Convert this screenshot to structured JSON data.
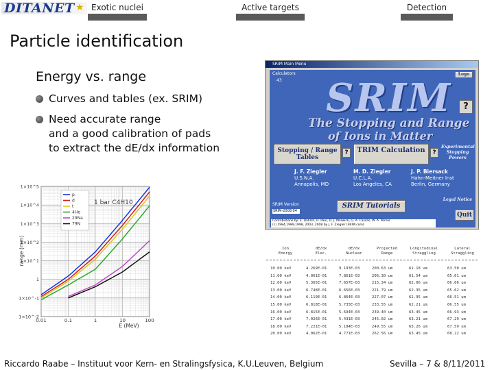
{
  "header": {
    "logo_text": "DITANET",
    "tabs": [
      {
        "label": "Exotic nuclei"
      },
      {
        "label": "Active targets"
      },
      {
        "label": "Detection"
      }
    ]
  },
  "slide": {
    "title": "Particle identification",
    "subtitle": "Energy vs. range",
    "bullets": [
      {
        "text": "Curves and tables (ex. SRIM)"
      },
      {
        "text_lines": [
          "Need accurate range",
          "and a good calibration of pads",
          "to extract the dE/dx information"
        ]
      }
    ]
  },
  "plot": {
    "annotation": "1 bar C4H10",
    "xlabel": "E (MeV)",
    "ylabel": "range (mm)",
    "xticks": [
      "0.01",
      "0.1",
      "1",
      "10",
      "100"
    ],
    "yticks": [
      "1×10^5",
      "1×10^4",
      "1×10^3",
      "1×10^2",
      "1×10^1",
      "1",
      "1×10^-1",
      "1×10^-2"
    ],
    "legend": [
      {
        "name": "p",
        "color": "#1a33d9"
      },
      {
        "name": "d",
        "color": "#d41c1c"
      },
      {
        "name": "t",
        "color": "#d8c71a"
      },
      {
        "name": "4He",
        "color": "#2aa82a"
      },
      {
        "name": "29Na",
        "color": "#c24ac2"
      },
      {
        "name": "79N",
        "color": "#111111"
      }
    ]
  },
  "chart_data": {
    "type": "line",
    "title": "",
    "annotation": "1 bar C4H10",
    "xlabel": "E (MeV)",
    "ylabel": "range (mm)",
    "xscale": "log",
    "yscale": "log",
    "xlim": [
      0.01,
      100
    ],
    "ylim": [
      0.01,
      100000
    ],
    "legend_position": "top-left",
    "grid": true,
    "series": [
      {
        "name": "p",
        "x": [
          0.01,
          0.1,
          1,
          10,
          100
        ],
        "y": [
          0.15,
          1.5,
          30,
          1500,
          90000
        ]
      },
      {
        "name": "d",
        "x": [
          0.01,
          0.1,
          1,
          10,
          100
        ],
        "y": [
          0.12,
          1.0,
          18,
          800,
          50000
        ]
      },
      {
        "name": "t",
        "x": [
          0.01,
          0.1,
          1,
          10,
          100
        ],
        "y": [
          0.1,
          0.8,
          12,
          500,
          30000
        ]
      },
      {
        "name": "4He",
        "x": [
          0.01,
          0.1,
          1,
          10,
          100
        ],
        "y": [
          0.08,
          0.5,
          3.5,
          150,
          9000
        ]
      },
      {
        "name": "29Na",
        "x": [
          0.1,
          1,
          10,
          100
        ],
        "y": [
          0.12,
          0.5,
          5,
          120
        ]
      },
      {
        "name": "79N",
        "x": [
          0.1,
          1,
          10,
          100
        ],
        "y": [
          0.1,
          0.4,
          2.5,
          30
        ]
      }
    ]
  },
  "srim": {
    "window_title": "SRIM Main Menu",
    "calculators_label": "Calculators",
    "calculators_value": "43",
    "logo": "SRIM",
    "subtitle1": "The Stopping and Range",
    "subtitle2": "of Ions in Matter",
    "help_q": "?",
    "btn_stopping": "Stopping / Range Tables",
    "btn_trim": "TRIM Calculation",
    "btn_experimental": "Experimental Stopping Powers",
    "btn_tutorials": "SRIM Tutorials",
    "btn_legal": "Legal Notice",
    "btn_quit": "Quit",
    "btn_logo": "Logo",
    "authors": [
      {
        "name": "J. F. Ziegler",
        "line1": "U.S.N.A.",
        "line2": "Annapolis, MD"
      },
      {
        "name": "M. D. Ziegler",
        "line1": "U.C.L.A.",
        "line2": "Los Angeles, CA"
      },
      {
        "name": "J. P. Biersack",
        "line1": "Hahn-Meitner Inst",
        "line2": "Berlin, Germany"
      }
    ],
    "version_label": "SRIM Version",
    "version_value": "SRIM-2008.04",
    "contributions": "Contributions by: E. Dahlch, H. Paul, D. J. Marwick, G. A. Cassas, W. A. Porser",
    "copyright": "(c) 1984,1989,1998, 2003, 2008 by J. F. Ziegler (SRIM.com)"
  },
  "table": {
    "headers": [
      [
        "Ion",
        "Energy"
      ],
      [
        "dE/dx",
        "Elec."
      ],
      [
        "dE/dx",
        "Nuclear"
      ],
      [
        "Projected",
        "Range"
      ],
      [
        "Longitudinal",
        "Straggling"
      ],
      [
        "Lateral",
        "Straggling"
      ]
    ],
    "rows": [
      [
        "10.00 keV",
        "4.269E-01",
        "9.193E-03",
        "200.63 um",
        "61.18 um",
        "63.50 um"
      ],
      [
        "11.00 keV",
        "4.061E-01",
        "7.861E-03",
        "206.30 um",
        "61.54 um",
        "65.61 um"
      ],
      [
        "12.00 keV",
        "5.365E-01",
        "7.657E-03",
        "215.34 um",
        "62.06 um",
        "66.66 um"
      ],
      [
        "13.00 keV",
        "6.748E-01",
        "6.656E-03",
        "221.79 um",
        "62.35 um",
        "65.62 um"
      ],
      [
        "14.00 keV",
        "6.119E-01",
        "6.864E-03",
        "227.07 um",
        "62.95 um",
        "66.51 um"
      ],
      [
        "15.00 keV",
        "6.818E-01",
        "5.735E-03",
        "233.55 um",
        "62.21 um",
        "66.55 um"
      ],
      [
        "16.00 keV",
        "6.815E-01",
        "5.694E-03",
        "239.40 um",
        "63.45 um",
        "66.93 um"
      ],
      [
        "17.00 keV",
        "7.026E-01",
        "5.431E-03",
        "245.02 um",
        "63.21 um",
        "67.29 um"
      ],
      [
        "18.00 keV",
        "7.221E-01",
        "5.184E-03",
        "249.55 um",
        "63.26 um",
        "67.59 um"
      ],
      [
        "20.00 keV",
        "4.062E-01",
        "4.771E-03",
        "262.56 um",
        "63.45 um",
        "68.22 um"
      ]
    ]
  },
  "footer": {
    "left": "Riccardo Raabe – Instituut voor Kern- en Stralingsfysica, K.U.Leuven, Belgium",
    "right": "Sevilla – 7 & 8/11/2011"
  },
  "colors": {
    "nav_bar": "#5a5a5a",
    "srim_bg": "#3f66b8",
    "logo_blue": "#1b3a8c"
  }
}
